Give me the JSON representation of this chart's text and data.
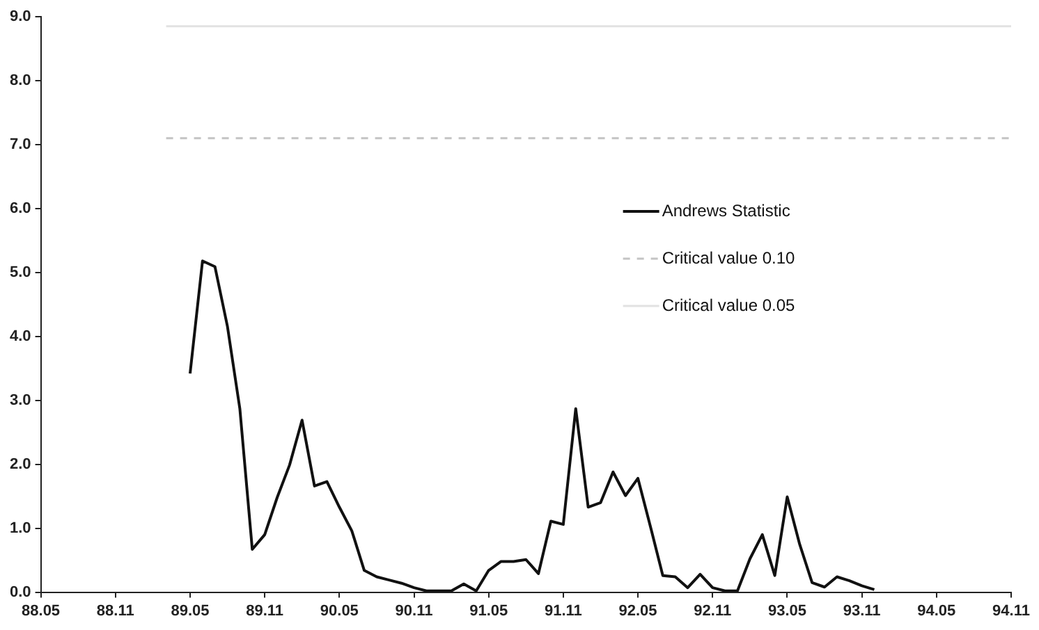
{
  "chart_data": {
    "type": "line",
    "categories": [
      "88.05",
      null,
      null,
      null,
      null,
      null,
      "88.11",
      null,
      null,
      null,
      null,
      null,
      "89.05",
      null,
      null,
      null,
      null,
      null,
      "89.11",
      null,
      null,
      null,
      null,
      null,
      "90.05",
      null,
      null,
      null,
      null,
      null,
      "90.11",
      null,
      null,
      null,
      null,
      null,
      "91.05",
      null,
      null,
      null,
      null,
      null,
      "91.11",
      null,
      null,
      null,
      null,
      null,
      "92.05",
      null,
      null,
      null,
      null,
      null,
      "92.11",
      null,
      null,
      null,
      null,
      null,
      "93.05",
      null,
      null,
      null,
      null,
      null,
      "93.11",
      null,
      null,
      null,
      null,
      null,
      "94.05",
      null,
      null,
      null,
      null,
      null,
      "94.11"
    ],
    "series": [
      {
        "name": "Andrews Statistic",
        "color": "#111111",
        "values": [
          null,
          null,
          null,
          null,
          null,
          null,
          null,
          null,
          null,
          null,
          null,
          null,
          3.42,
          5.18,
          5.09,
          4.16,
          2.87,
          0.67,
          0.9,
          1.48,
          1.99,
          2.69,
          1.66,
          1.73,
          1.33,
          0.96,
          0.34,
          0.24,
          0.19,
          0.14,
          0.07,
          0.02,
          0.02,
          0.02,
          0.13,
          0.02,
          0.34,
          0.48,
          0.48,
          0.51,
          0.29,
          1.11,
          1.06,
          2.87,
          1.33,
          1.4,
          1.88,
          1.51,
          1.78,
          1.03,
          0.26,
          0.24,
          0.07,
          0.28,
          0.07,
          0.02,
          0.02,
          0.52,
          0.9,
          0.26,
          1.49,
          0.75,
          0.15,
          0.08,
          0.24,
          0.18,
          0.1,
          0.04,
          null,
          null,
          null,
          null,
          null,
          null,
          null,
          null,
          null,
          null,
          null
        ]
      }
    ],
    "ref_lines": [
      {
        "axis": "y",
        "value": 7.1,
        "label": "Critical value 0.10",
        "color": "#c4c4c4",
        "line_style": "dashed"
      },
      {
        "axis": "y",
        "value": 8.85,
        "label": "Critical value 0.05",
        "color": "#e2e2e2",
        "line_style": "solid"
      }
    ],
    "ylim": [
      0,
      9
    ],
    "yticks": [
      {
        "value": 0,
        "label": "0.0"
      },
      {
        "value": 1,
        "label": "1.0"
      },
      {
        "value": 2,
        "label": "2.0"
      },
      {
        "value": 3,
        "label": "3.0"
      },
      {
        "value": 4,
        "label": "4.0"
      },
      {
        "value": 5,
        "label": "5.0"
      },
      {
        "value": 6,
        "label": "6.0"
      },
      {
        "value": 7,
        "label": "7.0"
      },
      {
        "value": 8,
        "label": "8.0"
      },
      {
        "value": 9,
        "label": "9.0"
      }
    ],
    "grid": false,
    "legend": "right",
    "marker": "none",
    "line_style": "solid"
  }
}
